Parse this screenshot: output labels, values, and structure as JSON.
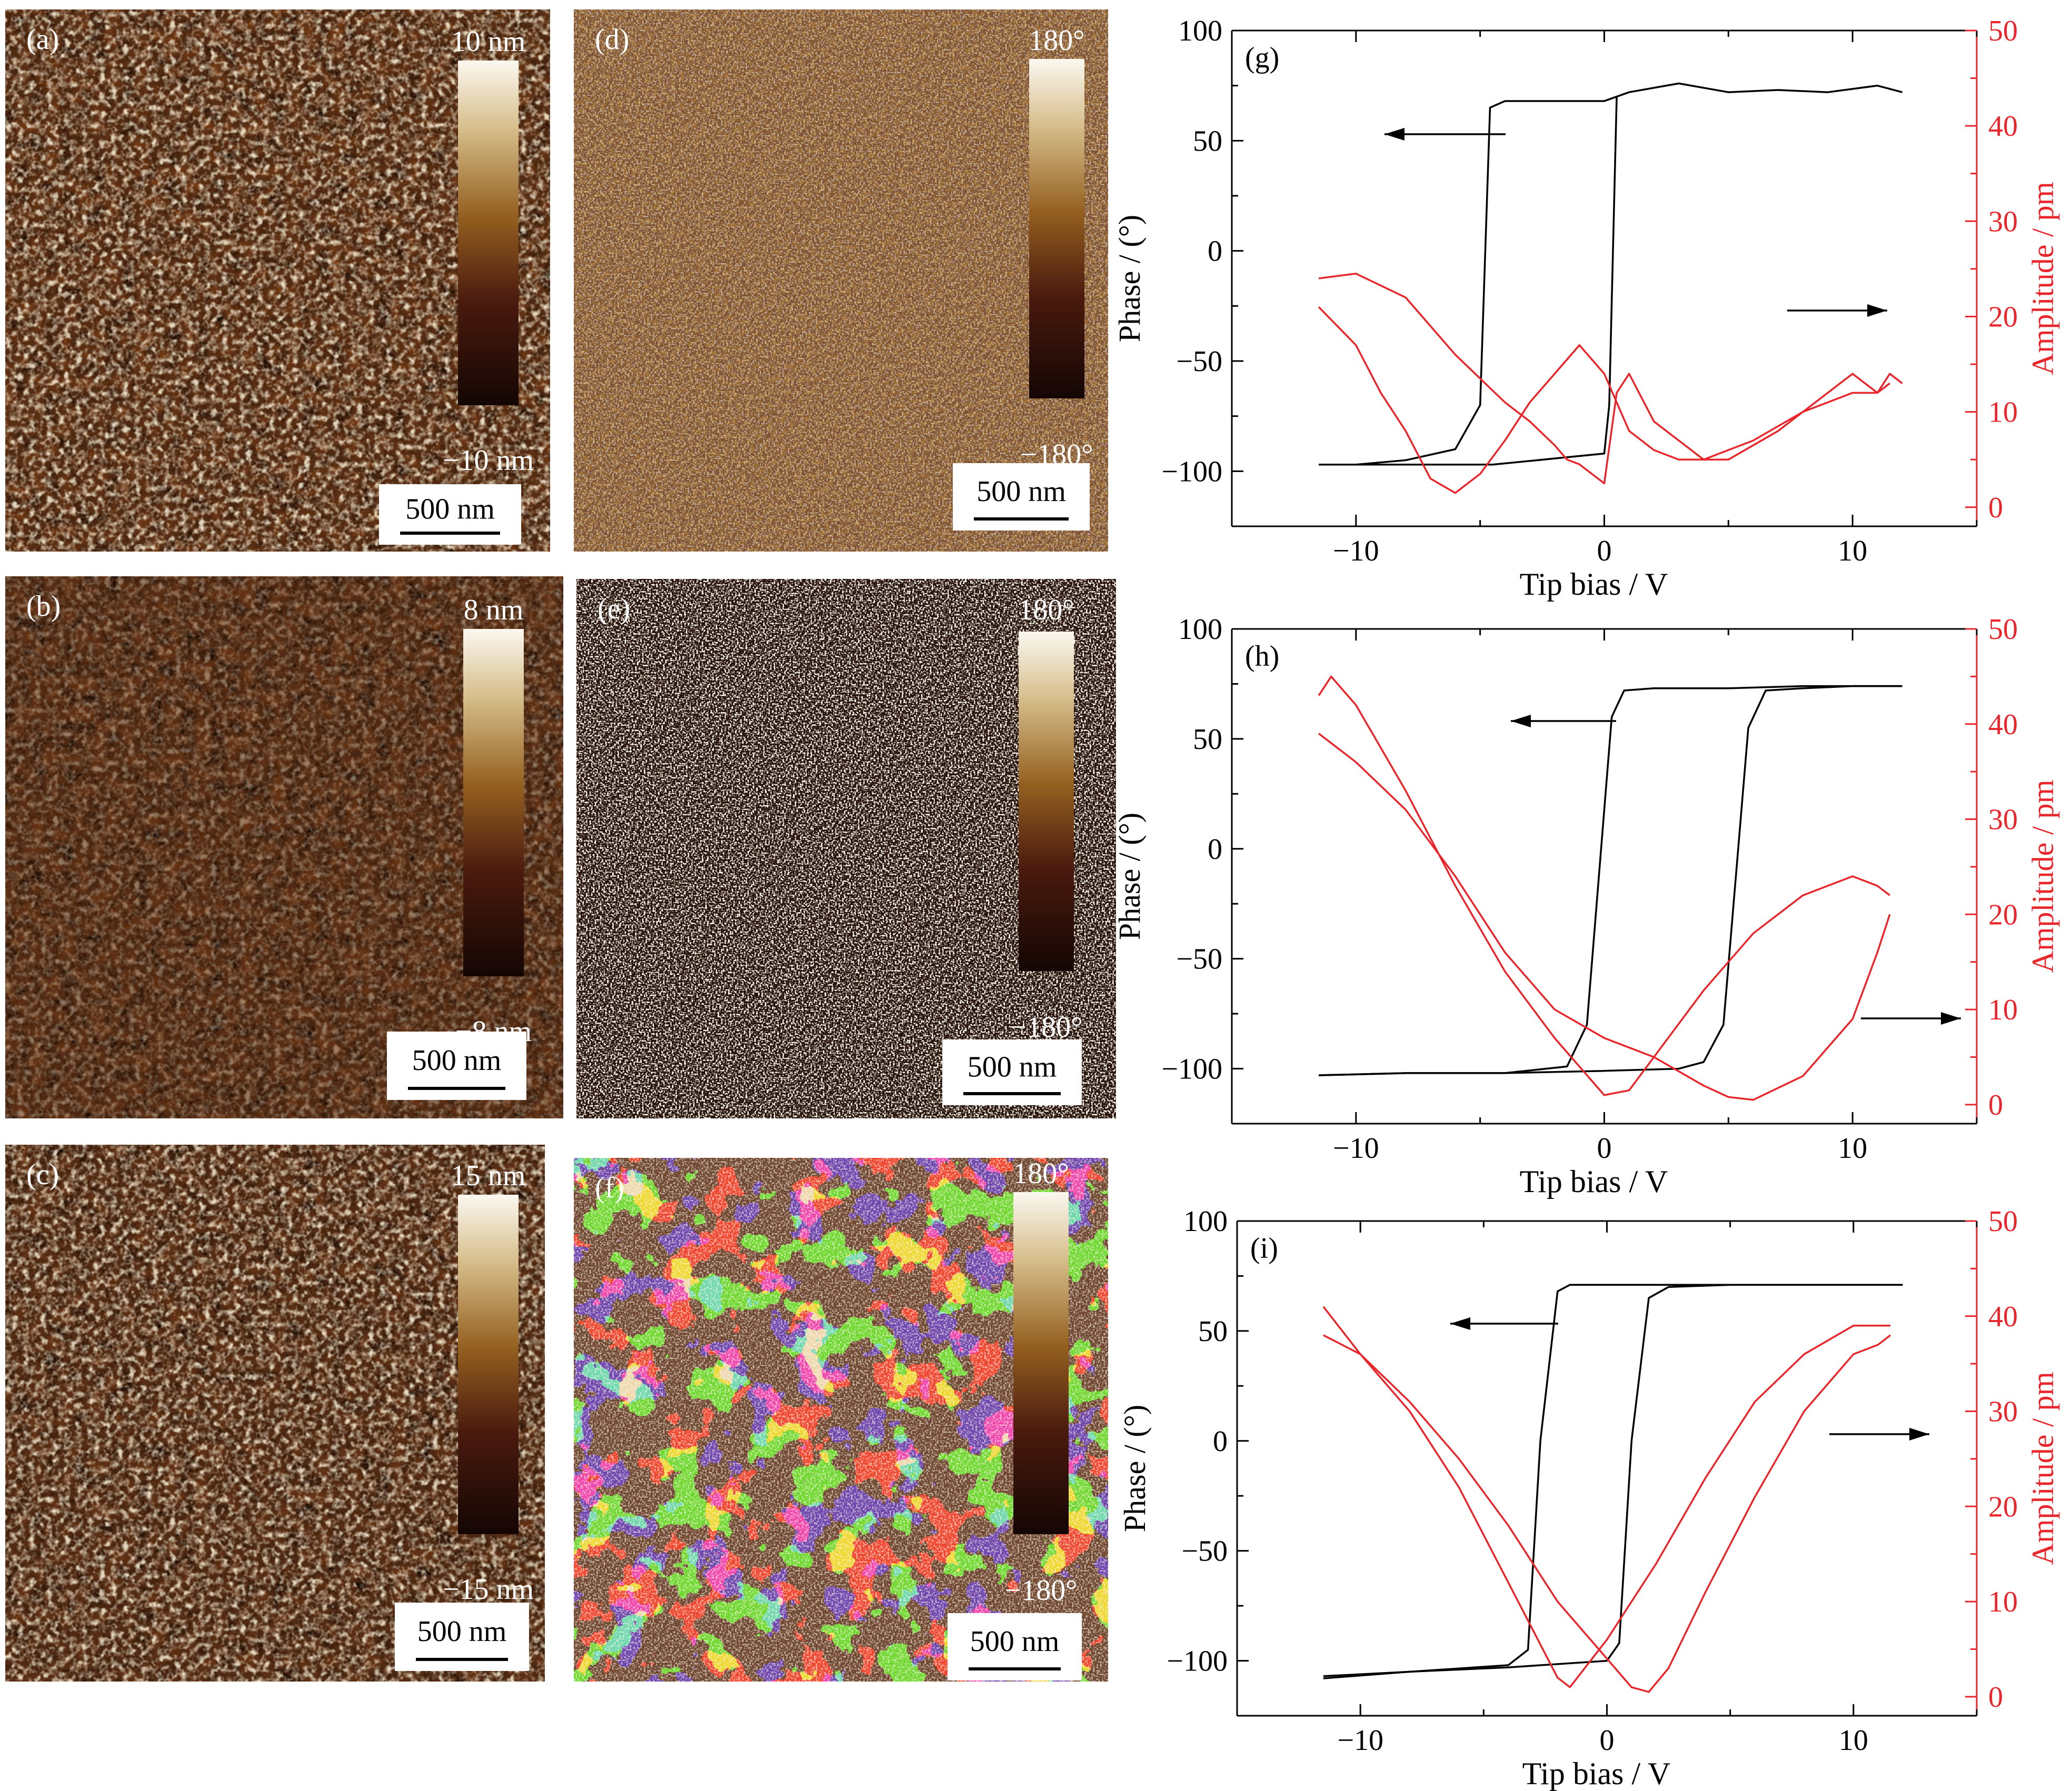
{
  "afm_panels": [
    {
      "label": "(a)",
      "kind": "topography",
      "scale_top": "10 nm",
      "scale_bottom": "−10 nm",
      "scalebar": "500 nm"
    },
    {
      "label": "(b)",
      "kind": "topography",
      "scale_top": "8 nm",
      "scale_bottom": "−8 nm",
      "scalebar": "500 nm"
    },
    {
      "label": "(c)",
      "kind": "topography",
      "scale_top": "15 nm",
      "scale_bottom": "−15 nm",
      "scalebar": "500 nm"
    },
    {
      "label": "(d)",
      "kind": "phase",
      "scale_top": "180°",
      "scale_bottom": "−180°",
      "scalebar": "500 nm"
    },
    {
      "label": "(e)",
      "kind": "phase",
      "scale_top": "180°",
      "scale_bottom": "−180°",
      "scalebar": "500 nm"
    },
    {
      "label": "(f)",
      "kind": "phase",
      "scale_top": "180°",
      "scale_bottom": "−180°",
      "scalebar": "500 nm"
    }
  ],
  "colors": {
    "phase_line": "#000000",
    "amplitude_line": "#e8262b",
    "afm_dark": "#1a0a03",
    "afm_mid": "#8a4a16",
    "afm_light": "#f8f2e4"
  },
  "chart_data": [
    {
      "panel": "(g)",
      "type": "line",
      "xlabel": "Tip bias / V",
      "ylabel": "Phase / (°)",
      "y2label": "Amplitude / pm",
      "xlim": [
        -15,
        15
      ],
      "ylim": [
        -125,
        100
      ],
      "y2lim": [
        -2,
        50
      ],
      "xticks": [
        -10,
        0,
        10
      ],
      "yticks": [
        100,
        50,
        0,
        -50,
        -100
      ],
      "y2ticks": [
        50,
        40,
        30,
        20,
        10,
        0
      ],
      "series": [
        {
          "axis": "left",
          "x": [
            -11.5,
            -10,
            -8,
            -6,
            -5,
            -4.6,
            -4,
            0,
            0.5,
            0.2,
            0,
            -4.5,
            -5,
            -5.5,
            -6,
            -8,
            -11.5
          ],
          "y": [
            -97,
            -97,
            -95,
            -90,
            -70,
            65,
            68,
            68,
            70,
            -70,
            -92,
            -97,
            -97,
            -97,
            -97,
            -97,
            -97
          ]
        },
        {
          "axis": "left",
          "x": [
            0,
            1,
            3,
            5,
            7,
            9,
            11,
            12
          ],
          "y": [
            68,
            72,
            76,
            72,
            73,
            72,
            75,
            72
          ]
        },
        {
          "axis": "right",
          "x": [
            -11.5,
            -10,
            -8,
            -6,
            -4,
            -3,
            -2,
            -1.5,
            -1,
            -0.5,
            0,
            0.5,
            1,
            2,
            3,
            4,
            6,
            8,
            10,
            11,
            11.5,
            12
          ],
          "y": [
            24,
            24.5,
            22,
            16,
            11,
            9,
            6.5,
            5,
            4.5,
            3.5,
            2.5,
            12,
            14,
            9,
            7,
            5,
            7,
            10,
            12,
            12,
            14,
            13
          ]
        },
        {
          "axis": "right",
          "x": [
            -11.5,
            -10,
            -9,
            -8,
            -7,
            -6,
            -5,
            -4,
            -3,
            -2,
            -1,
            0,
            1,
            2,
            3,
            5,
            7,
            9,
            10,
            11,
            11.5
          ],
          "y": [
            21,
            17,
            12,
            8,
            3,
            1.5,
            3.5,
            7,
            11,
            14,
            17,
            14,
            8,
            6,
            5,
            5,
            8,
            12,
            14,
            12,
            13
          ]
        }
      ],
      "arrows": [
        {
          "text_dir": "left"
        },
        {
          "text_dir": "right"
        }
      ]
    },
    {
      "panel": "(h)",
      "type": "line",
      "xlabel": "Tip bias / V",
      "ylabel": "Phase / (°)",
      "y2label": "Amplitude / pm",
      "xlim": [
        -15,
        15
      ],
      "ylim": [
        -125,
        100
      ],
      "y2lim": [
        -2,
        50
      ],
      "xticks": [
        -10,
        0,
        10
      ],
      "yticks": [
        100,
        50,
        0,
        -50,
        -100
      ],
      "y2ticks": [
        50,
        40,
        30,
        20,
        10,
        0
      ],
      "series": [
        {
          "axis": "left",
          "x": [
            -11.5,
            -8,
            -4,
            -1.5,
            -0.7,
            0.3,
            0.8,
            2,
            5,
            8,
            10,
            12
          ],
          "y": [
            -103,
            -102,
            -102,
            -99,
            -80,
            60,
            72,
            73,
            73,
            74,
            74,
            74
          ]
        },
        {
          "axis": "left",
          "x": [
            -11.5,
            -8,
            -4,
            0,
            3,
            4,
            4.8,
            5.8,
            6.5,
            8,
            10,
            12
          ],
          "y": [
            -103,
            -102,
            -102,
            -101,
            -100,
            -97,
            -80,
            55,
            72,
            73,
            74,
            74
          ]
        },
        {
          "axis": "right",
          "x": [
            -11.5,
            -11,
            -10,
            -8,
            -6,
            -4,
            -2,
            -1,
            0,
            1,
            2,
            4,
            6,
            8,
            10,
            11,
            11.5
          ],
          "y": [
            43,
            45,
            42,
            33,
            23,
            14,
            7,
            4,
            1,
            1.5,
            5,
            12,
            18,
            22,
            24,
            23,
            22
          ]
        },
        {
          "axis": "right",
          "x": [
            -11.5,
            -10,
            -8,
            -6,
            -4,
            -2,
            0,
            2,
            4,
            5,
            6,
            8,
            10,
            11,
            11.5
          ],
          "y": [
            39,
            36,
            31,
            24,
            16,
            10,
            7,
            5,
            2,
            0.8,
            0.5,
            3,
            9,
            16,
            20
          ]
        }
      ],
      "arrows": [
        {
          "text_dir": "left"
        },
        {
          "text_dir": "right"
        }
      ]
    },
    {
      "panel": "(i)",
      "type": "line",
      "xlabel": "Tip bias / V",
      "ylabel": "Phase / (°)",
      "y2label": "Amplitude / pm",
      "xlim": [
        -15,
        15
      ],
      "ylim": [
        -125,
        100
      ],
      "y2lim": [
        -2,
        50
      ],
      "xticks": [
        -10,
        0,
        10
      ],
      "yticks": [
        100,
        50,
        0,
        -50,
        -100
      ],
      "y2ticks": [
        50,
        40,
        30,
        20,
        10,
        0
      ],
      "series": [
        {
          "axis": "left",
          "x": [
            -11.5,
            -8,
            -4,
            -3.2,
            -2.7,
            -2,
            -1.5,
            0,
            4,
            8,
            12
          ],
          "y": [
            -108,
            -105,
            -102,
            -95,
            0,
            68,
            71,
            71,
            71,
            71,
            71
          ]
        },
        {
          "axis": "left",
          "x": [
            -11.5,
            -8,
            -4,
            0,
            0.5,
            1,
            1.7,
            2.5,
            5,
            8,
            12
          ],
          "y": [
            -107,
            -105,
            -103,
            -100,
            -92,
            0,
            65,
            70,
            71,
            71,
            71
          ]
        },
        {
          "axis": "right",
          "x": [
            -11.5,
            -10,
            -8,
            -6,
            -4,
            -2,
            -1.5,
            0,
            2,
            4,
            6,
            8,
            10,
            11,
            11.5
          ],
          "y": [
            41,
            36,
            30,
            22,
            12,
            2,
            1,
            6,
            14,
            23,
            31,
            36,
            39,
            39,
            39
          ]
        },
        {
          "axis": "right",
          "x": [
            -11.5,
            -10,
            -8,
            -6,
            -4,
            -2,
            0,
            1,
            1.7,
            2.5,
            4,
            6,
            8,
            10,
            11,
            11.5
          ],
          "y": [
            38,
            36,
            31,
            25,
            18,
            10,
            4,
            1,
            0.5,
            3,
            11,
            21,
            30,
            36,
            37,
            38
          ]
        }
      ],
      "arrows": [
        {
          "text_dir": "left"
        },
        {
          "text_dir": "right"
        }
      ]
    }
  ]
}
